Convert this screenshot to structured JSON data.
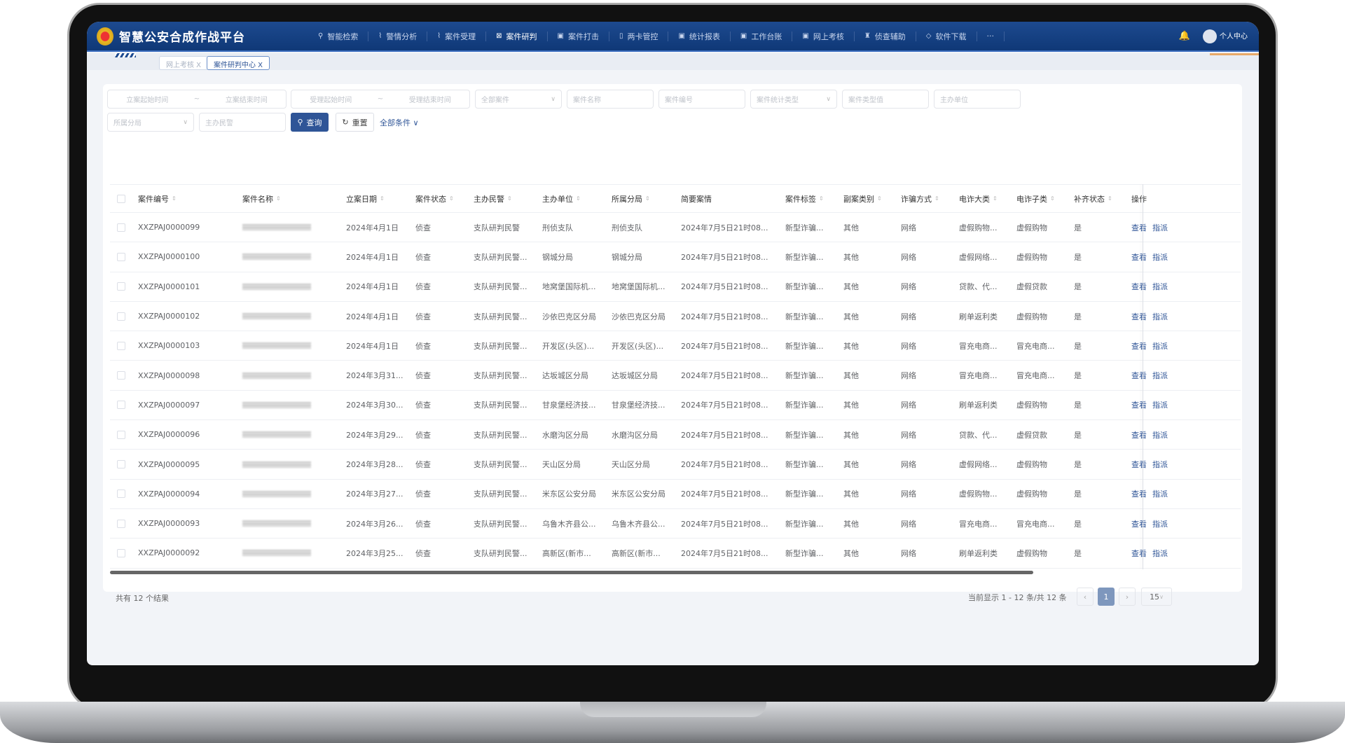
{
  "header": {
    "title": "智慧公安合成作战平台",
    "menu": [
      {
        "label": "智能检索",
        "icon": "search-icon"
      },
      {
        "label": "警情分析",
        "icon": "chart-icon"
      },
      {
        "label": "案件受理",
        "icon": "chart-icon"
      },
      {
        "label": "案件研判",
        "icon": "analysis-icon",
        "active": true
      },
      {
        "label": "案件打击",
        "icon": "card-icon"
      },
      {
        "label": "两卡管控",
        "icon": "phone-icon"
      },
      {
        "label": "统计报表",
        "icon": "card-icon"
      },
      {
        "label": "工作台账",
        "icon": "card-icon"
      },
      {
        "label": "网上考核",
        "icon": "card-icon"
      },
      {
        "label": "侦查辅助",
        "icon": "police-icon"
      },
      {
        "label": "软件下载",
        "icon": "download-icon"
      },
      {
        "label": "···",
        "icon": ""
      }
    ],
    "user": "个人中心"
  },
  "tabs": [
    {
      "label": "网上考核 X",
      "active": false
    },
    {
      "label": "案件研判中心 X",
      "active": true
    }
  ],
  "filters": {
    "filing_start": "立案起始时间",
    "filing_end": "立案结束时间",
    "accept_start": "受理起始时间",
    "accept_end": "受理结束时间",
    "tilde": "~",
    "all_cases": "全部案件",
    "case_name": "案件名称",
    "case_no": "案件编号",
    "stat_type": "案件统计类型",
    "type_value": "案件类型值",
    "unit": "主办单位",
    "branch": "所属分局",
    "officer": "主办民警",
    "query": "查询",
    "reset": "重置",
    "all_conditions": "全部条件"
  },
  "table": {
    "columns": [
      "案件编号",
      "案件名称",
      "立案日期",
      "案件状态",
      "主办民警",
      "主办单位",
      "所属分局",
      "简要案情",
      "案件标签",
      "副案类别",
      "诈骗方式",
      "电诈大类",
      "电诈子类",
      "补齐状态",
      "操作"
    ],
    "rows": [
      [
        "XXZPAJ0000099",
        "",
        "2024年4月1日",
        "侦查",
        "支队研判民警",
        "刑侦支队",
        "刑侦支队",
        "2024年7月5日21时08...",
        "新型诈骗...",
        "其他",
        "网络",
        "虚假购物...",
        "虚假购物",
        "是"
      ],
      [
        "XXZPAJ0000100",
        "",
        "2024年4月1日",
        "侦查",
        "支队研判民警...",
        "钢城分局",
        "钢城分局",
        "2024年7月5日21时08...",
        "新型诈骗...",
        "其他",
        "网络",
        "虚假网络...",
        "虚假购物",
        "是"
      ],
      [
        "XXZPAJ0000101",
        "",
        "2024年4月1日",
        "侦查",
        "支队研判民警...",
        "地窝堡国际机...",
        "地窝堡国际机...",
        "2024年7月5日21时08...",
        "新型诈骗...",
        "其他",
        "网络",
        "贷款、代...",
        "虚假贷款",
        "是"
      ],
      [
        "XXZPAJ0000102",
        "",
        "2024年4月1日",
        "侦查",
        "支队研判民警...",
        "沙依巴克区分局",
        "沙依巴克区分局",
        "2024年7月5日21时08...",
        "新型诈骗...",
        "其他",
        "网络",
        "刷单返利类",
        "虚假购物",
        "是"
      ],
      [
        "XXZPAJ0000103",
        "",
        "2024年4月1日",
        "侦查",
        "支队研判民警...",
        "开发区(头区)...",
        "开发区(头区)...",
        "2024年7月5日21时08...",
        "新型诈骗...",
        "其他",
        "网络",
        "冒充电商...",
        "冒充电商...",
        "是"
      ],
      [
        "XXZPAJ0000098",
        "",
        "2024年3月31...",
        "侦查",
        "支队研判民警...",
        "达坂城区分局",
        "达坂城区分局",
        "2024年7月5日21时08...",
        "新型诈骗...",
        "其他",
        "网络",
        "冒充电商...",
        "冒充电商...",
        "是"
      ],
      [
        "XXZPAJ0000097",
        "",
        "2024年3月30...",
        "侦查",
        "支队研判民警...",
        "甘泉堡经济技...",
        "甘泉堡经济技...",
        "2024年7月5日21时08...",
        "新型诈骗...",
        "其他",
        "网络",
        "刷单返利类",
        "虚假购物",
        "是"
      ],
      [
        "XXZPAJ0000096",
        "",
        "2024年3月29...",
        "侦查",
        "支队研判民警...",
        "水磨沟区分局",
        "水磨沟区分局",
        "2024年7月5日21时08...",
        "新型诈骗...",
        "其他",
        "网络",
        "贷款、代...",
        "虚假贷款",
        "是"
      ],
      [
        "XXZPAJ0000095",
        "",
        "2024年3月28...",
        "侦查",
        "支队研判民警...",
        "天山区分局",
        "天山区分局",
        "2024年7月5日21时08...",
        "新型诈骗...",
        "其他",
        "网络",
        "虚假网络...",
        "虚假购物",
        "是"
      ],
      [
        "XXZPAJ0000094",
        "",
        "2024年3月27...",
        "侦查",
        "支队研判民警...",
        "米东区公安分局",
        "米东区公安分局",
        "2024年7月5日21时08...",
        "新型诈骗...",
        "其他",
        "网络",
        "虚假购物...",
        "虚假购物",
        "是"
      ],
      [
        "XXZPAJ0000093",
        "",
        "2024年3月26...",
        "侦查",
        "支队研判民警...",
        "乌鲁木齐县公...",
        "乌鲁木齐县公...",
        "2024年7月5日21时08...",
        "新型诈骗...",
        "其他",
        "网络",
        "冒充电商...",
        "冒充电商...",
        "是"
      ],
      [
        "XXZPAJ0000092",
        "",
        "2024年3月25...",
        "侦查",
        "支队研判民警...",
        "高新区(新市...",
        "高新区(新市...",
        "2024年7月5日21时08...",
        "新型诈骗...",
        "其他",
        "网络",
        "刷单返利类",
        "虚假购物",
        "是"
      ]
    ],
    "actions": [
      "查看",
      "指派"
    ]
  },
  "footer": {
    "total": "共有 12 个结果",
    "range": "当前显示 1 - 12 条/共 12 条",
    "page": "1",
    "page_size": "15",
    "prev": "‹",
    "next": "›"
  },
  "colors": {
    "nav": "#1d4a8f",
    "accent": "#2f5597"
  }
}
